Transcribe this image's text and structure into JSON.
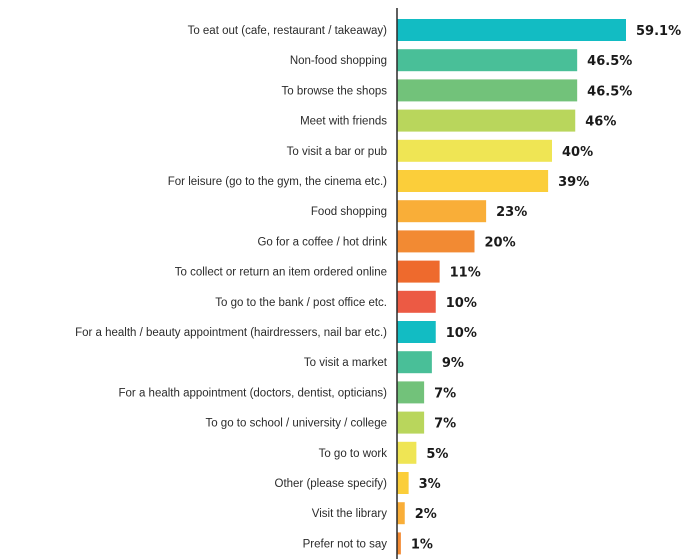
{
  "chart_data": {
    "type": "bar",
    "orientation": "horizontal",
    "categories": [
      "To eat out (cafe, restaurant / takeaway)",
      "Non-food shopping",
      "To browse the shops",
      "Meet with friends",
      "To visit a bar or pub",
      "For leisure (go to the gym, the cinema etc.)",
      "Food shopping",
      "Go for a coffee / hot drink",
      "To collect or return an item ordered online",
      "To go to the bank / post office etc.",
      "For a health / beauty appointment (hairdressers, nail bar etc.)",
      "To visit a market",
      "For a health appointment (doctors, dentist, opticians)",
      "To go to school / university / college",
      "To go to work",
      "Other (please specify)",
      "Visit the library",
      "Prefer not to say"
    ],
    "values": [
      59.1,
      46.5,
      46.5,
      46,
      40,
      39,
      23,
      20,
      11,
      10,
      10,
      9,
      7,
      7,
      5,
      3,
      2,
      1
    ],
    "value_labels": [
      "59.1%",
      "46.5%",
      "46.5%",
      "46%",
      "40%",
      "39%",
      "23%",
      "20%",
      "11%",
      "10%",
      "10%",
      "9%",
      "7%",
      "7%",
      "5%",
      "3%",
      "2%",
      "1%"
    ],
    "colors": [
      "#12bcc3",
      "#49bf98",
      "#72c27a",
      "#b9d65c",
      "#efe554",
      "#fbce3a",
      "#f9ae38",
      "#f28a33",
      "#ee6a2d",
      "#ec5a44",
      "#12bcc3",
      "#49bf98",
      "#72c27a",
      "#b9d65c",
      "#efe554",
      "#fbce3a",
      "#f9ae38",
      "#f28a33"
    ],
    "xlim": [
      0,
      62
    ],
    "grid": false,
    "legend": "none"
  }
}
